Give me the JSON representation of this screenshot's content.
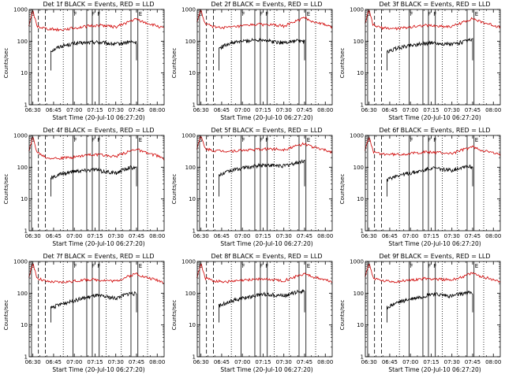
{
  "colors": {
    "events": "#000000",
    "lld": "#d00000",
    "frame": "#000000"
  },
  "common": {
    "xlabel": "Start Time (20-Jul-10 06:27:20)",
    "ylabel": "Counts/sec",
    "xticks": [
      "06:30",
      "06:45",
      "07:00",
      "07:15",
      "07:30",
      "07:45",
      "08:00"
    ],
    "yticks": [
      "1",
      "10",
      "100",
      "1000"
    ],
    "annotations": [
      "S",
      "F",
      "F",
      "F",
      "E"
    ]
  },
  "chart_data": [
    {
      "type": "line",
      "title": "Det 1f BLACK = Events, RED = LLD",
      "xlabel": "Start Time (20-Jul-10 06:27:20)",
      "ylabel": "Counts/sec",
      "y_scale": "log",
      "ylim": [
        1,
        1000
      ],
      "xlim": [
        "06:27:20",
        "08:05"
      ],
      "series": [
        {
          "name": "Events",
          "color": "black",
          "x": [
            "06:43",
            "06:50",
            "07:00",
            "07:10",
            "07:15",
            "07:20",
            "07:30",
            "07:40",
            "07:45"
          ],
          "values": [
            50,
            70,
            85,
            90,
            95,
            90,
            80,
            95,
            90
          ]
        },
        {
          "name": "LLD",
          "color": "red",
          "x": [
            "06:27",
            "06:30",
            "06:33",
            "06:40",
            "06:50",
            "07:00",
            "07:10",
            "07:20",
            "07:30",
            "07:40",
            "07:45",
            "07:50",
            "08:00",
            "08:05"
          ],
          "values": [
            300,
            900,
            300,
            250,
            230,
            260,
            300,
            320,
            280,
            420,
            500,
            400,
            300,
            250
          ]
        }
      ]
    },
    {
      "type": "line",
      "title": "Det 2f BLACK = Events, RED = LLD",
      "xlabel": "Start Time (20-Jul-10 06:27:20)",
      "ylabel": "Counts/sec",
      "y_scale": "log",
      "ylim": [
        1,
        1000
      ],
      "xlim": [
        "06:27:20",
        "08:05"
      ],
      "series": [
        {
          "name": "Events",
          "color": "black",
          "x": [
            "06:43",
            "06:50",
            "07:00",
            "07:10",
            "07:15",
            "07:20",
            "07:30",
            "07:40",
            "07:45"
          ],
          "values": [
            60,
            85,
            100,
            110,
            115,
            100,
            90,
            105,
            95
          ]
        },
        {
          "name": "LLD",
          "color": "red",
          "x": [
            "06:27",
            "06:30",
            "06:33",
            "06:40",
            "06:50",
            "07:00",
            "07:10",
            "07:20",
            "07:30",
            "07:40",
            "07:45",
            "07:50",
            "08:00",
            "08:05"
          ],
          "values": [
            400,
            950,
            350,
            280,
            270,
            300,
            340,
            330,
            300,
            450,
            550,
            430,
            330,
            280
          ]
        }
      ]
    },
    {
      "type": "line",
      "title": "Det 3f BLACK = Events, RED = LLD",
      "xlabel": "Start Time (20-Jul-10 06:27:20)",
      "ylabel": "Counts/sec",
      "y_scale": "log",
      "ylim": [
        1,
        1000
      ],
      "xlim": [
        "06:27:20",
        "08:05"
      ],
      "series": [
        {
          "name": "Events",
          "color": "black",
          "x": [
            "06:43",
            "06:50",
            "07:00",
            "07:10",
            "07:15",
            "07:20",
            "07:30",
            "07:40",
            "07:45"
          ],
          "values": [
            45,
            60,
            75,
            85,
            90,
            85,
            80,
            100,
            110
          ]
        },
        {
          "name": "LLD",
          "color": "red",
          "x": [
            "06:27",
            "06:30",
            "06:33",
            "06:40",
            "06:50",
            "07:00",
            "07:10",
            "07:20",
            "07:30",
            "07:40",
            "07:45",
            "07:50",
            "08:00",
            "08:05"
          ],
          "values": [
            350,
            950,
            320,
            260,
            250,
            280,
            320,
            300,
            290,
            430,
            520,
            420,
            320,
            270
          ]
        }
      ]
    },
    {
      "type": "line",
      "title": "Det 4f BLACK = Events, RED = LLD",
      "xlabel": "Start Time (20-Jul-10 06:27:20)",
      "ylabel": "Counts/sec",
      "y_scale": "log",
      "ylim": [
        1,
        1000
      ],
      "xlim": [
        "06:27:20",
        "08:05"
      ],
      "series": [
        {
          "name": "Events",
          "color": "black",
          "x": [
            "06:43",
            "06:50",
            "07:00",
            "07:10",
            "07:15",
            "07:20",
            "07:30",
            "07:40",
            "07:45"
          ],
          "values": [
            45,
            60,
            75,
            80,
            85,
            75,
            65,
            100,
            95
          ]
        },
        {
          "name": "LLD",
          "color": "red",
          "x": [
            "06:27",
            "06:30",
            "06:33",
            "06:40",
            "06:50",
            "07:00",
            "07:10",
            "07:20",
            "07:30",
            "07:40",
            "07:45",
            "07:50",
            "08:00",
            "08:05"
          ],
          "values": [
            300,
            900,
            300,
            200,
            190,
            210,
            250,
            240,
            220,
            320,
            380,
            300,
            230,
            180
          ]
        }
      ]
    },
    {
      "type": "line",
      "title": "Det 5f BLACK = Events, RED = LLD",
      "xlabel": "Start Time (20-Jul-10 06:27:20)",
      "ylabel": "Counts/sec",
      "y_scale": "log",
      "ylim": [
        1,
        1000
      ],
      "xlim": [
        "06:27:20",
        "08:05"
      ],
      "series": [
        {
          "name": "Events",
          "color": "black",
          "x": [
            "06:43",
            "06:50",
            "07:00",
            "07:10",
            "07:15",
            "07:20",
            "07:30",
            "07:40",
            "07:45"
          ],
          "values": [
            55,
            75,
            95,
            110,
            120,
            115,
            110,
            140,
            160
          ]
        },
        {
          "name": "LLD",
          "color": "red",
          "x": [
            "06:27",
            "06:30",
            "06:33",
            "06:40",
            "06:50",
            "07:00",
            "07:10",
            "07:20",
            "07:30",
            "07:40",
            "07:45",
            "07:50",
            "08:00",
            "08:05"
          ],
          "values": [
            400,
            950,
            380,
            330,
            320,
            340,
            360,
            380,
            360,
            480,
            560,
            450,
            340,
            300
          ]
        }
      ]
    },
    {
      "type": "line",
      "title": "Det 6f BLACK = Events, RED = LLD",
      "xlabel": "Start Time (20-Jul-10 06:27:20)",
      "ylabel": "Counts/sec",
      "y_scale": "log",
      "ylim": [
        1,
        1000
      ],
      "xlim": [
        "06:27:20",
        "08:05"
      ],
      "series": [
        {
          "name": "Events",
          "color": "black",
          "x": [
            "06:43",
            "06:50",
            "07:00",
            "07:10",
            "07:15",
            "07:20",
            "07:30",
            "07:40",
            "07:45"
          ],
          "values": [
            40,
            55,
            65,
            80,
            95,
            90,
            80,
            110,
            100
          ]
        },
        {
          "name": "LLD",
          "color": "red",
          "x": [
            "06:27",
            "06:30",
            "06:33",
            "06:40",
            "06:50",
            "07:00",
            "07:10",
            "07:20",
            "07:30",
            "07:40",
            "07:45",
            "07:50",
            "08:00",
            "08:05"
          ],
          "values": [
            350,
            900,
            300,
            260,
            250,
            270,
            300,
            290,
            270,
            380,
            440,
            360,
            280,
            240
          ]
        }
      ]
    },
    {
      "type": "line",
      "title": "Det 7f BLACK = Events, RED = LLD",
      "xlabel": "Start Time (20-Jul-10 06:27:20)",
      "ylabel": "Counts/sec",
      "y_scale": "log",
      "ylim": [
        1,
        1000
      ],
      "xlim": [
        "06:27:20",
        "08:05"
      ],
      "series": [
        {
          "name": "Events",
          "color": "black",
          "x": [
            "06:43",
            "06:50",
            "07:00",
            "07:10",
            "07:15",
            "07:20",
            "07:30",
            "07:40",
            "07:45"
          ],
          "values": [
            35,
            45,
            60,
            75,
            85,
            80,
            70,
            100,
            95
          ]
        },
        {
          "name": "LLD",
          "color": "red",
          "x": [
            "06:27",
            "06:30",
            "06:33",
            "06:40",
            "06:50",
            "07:00",
            "07:10",
            "07:20",
            "07:30",
            "07:40",
            "07:45",
            "07:50",
            "08:00",
            "08:05"
          ],
          "values": [
            320,
            900,
            300,
            230,
            220,
            240,
            270,
            260,
            240,
            350,
            420,
            330,
            260,
            220
          ]
        }
      ]
    },
    {
      "type": "line",
      "title": "Det 8f BLACK = Events, RED = LLD",
      "xlabel": "Start Time (20-Jul-10 06:27:20)",
      "ylabel": "Counts/sec",
      "y_scale": "log",
      "ylim": [
        1,
        1000
      ],
      "xlim": [
        "06:27:20",
        "08:05"
      ],
      "series": [
        {
          "name": "Events",
          "color": "black",
          "x": [
            "06:43",
            "06:50",
            "07:00",
            "07:10",
            "07:15",
            "07:20",
            "07:30",
            "07:40",
            "07:45"
          ],
          "values": [
            40,
            55,
            70,
            85,
            95,
            90,
            85,
            110,
            120
          ]
        },
        {
          "name": "LLD",
          "color": "red",
          "x": [
            "06:27",
            "06:30",
            "06:33",
            "06:40",
            "06:50",
            "07:00",
            "07:10",
            "07:20",
            "07:30",
            "07:40",
            "07:45",
            "07:50",
            "08:00",
            "08:05"
          ],
          "values": [
            300,
            900,
            300,
            240,
            230,
            250,
            280,
            270,
            250,
            350,
            420,
            340,
            260,
            230
          ]
        }
      ]
    },
    {
      "type": "line",
      "title": "Det 9f BLACK = Events, RED = LLD",
      "xlabel": "Start Time (20-Jul-10 06:27:20)",
      "ylabel": "Counts/sec",
      "y_scale": "log",
      "ylim": [
        1,
        1000
      ],
      "xlim": [
        "06:27:20",
        "08:05"
      ],
      "series": [
        {
          "name": "Events",
          "color": "black",
          "x": [
            "06:43",
            "06:50",
            "07:00",
            "07:10",
            "07:15",
            "07:20",
            "07:30",
            "07:40",
            "07:45"
          ],
          "values": [
            35,
            50,
            65,
            80,
            95,
            90,
            80,
            105,
            100
          ]
        },
        {
          "name": "LLD",
          "color": "red",
          "x": [
            "06:27",
            "06:30",
            "06:33",
            "06:40",
            "06:50",
            "07:00",
            "07:10",
            "07:20",
            "07:30",
            "07:40",
            "07:45",
            "07:50",
            "08:00",
            "08:05"
          ],
          "values": [
            320,
            900,
            300,
            240,
            230,
            260,
            290,
            280,
            260,
            360,
            430,
            350,
            270,
            230
          ]
        }
      ]
    }
  ]
}
